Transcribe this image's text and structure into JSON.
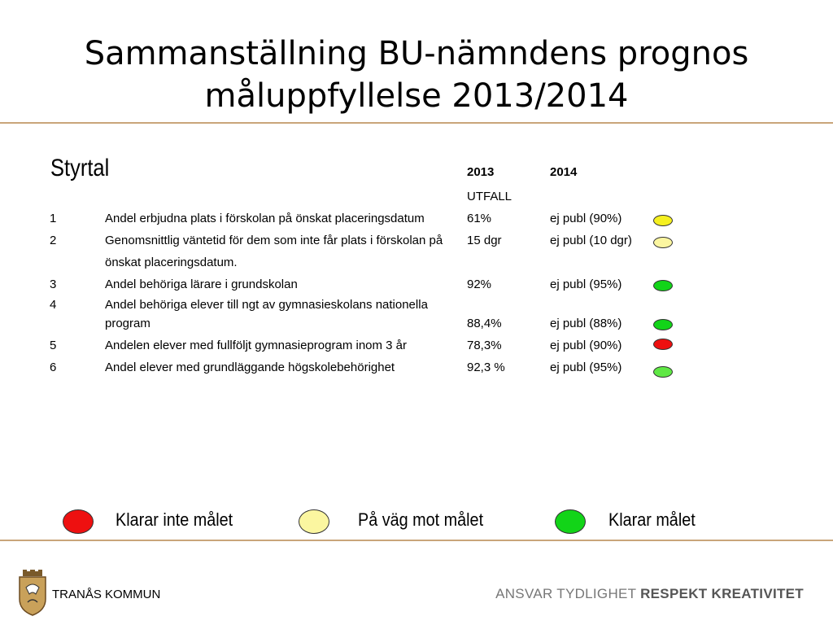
{
  "title": {
    "line1": "Sammanställning BU-nämndens prognos",
    "line2": "måluppfyllelse 2013/2014"
  },
  "table": {
    "heading": "Styrtal",
    "col_2013": "2013",
    "col_2013_sub": "UTFALL",
    "col_2014": "2014",
    "rows": [
      {
        "num": "1",
        "text": [
          "Andel erbjudna plats i förskolan på önskat placeringsdatum"
        ],
        "v2013": "61%",
        "v2014": "ej publ (90%)",
        "status_color": "#f5f020"
      },
      {
        "num": "2",
        "text": [
          "Genomsnittlig väntetid för dem som inte får plats i förskolan på",
          "önskat placeringsdatum."
        ],
        "v2013": "15 dgr",
        "v2014": "ej publ (10 dgr)",
        "status_color": "#fbf6a0"
      },
      {
        "num": "3",
        "text": [
          "Andel behöriga lärare i grundskolan"
        ],
        "v2013": "92%",
        "v2014": "ej publ (95%)",
        "status_color": "#12d418"
      },
      {
        "num": "4",
        "text": [
          "Andel behöriga elever till ngt av gymnasieskolans nationella",
          "program"
        ],
        "v2013": "88,4%",
        "v2014": "ej publ (88%)",
        "status_color": "#12d418"
      },
      {
        "num": "5",
        "text": [
          "Andelen elever med fullföljt gymnasieprogram inom 3 år"
        ],
        "v2013": "78,3%",
        "v2014": "ej publ (90%)",
        "status_color": "#ee1010"
      },
      {
        "num": "6",
        "text": [
          "Andel elever med grundläggande högskolebehörighet"
        ],
        "v2013": "92,3 %",
        "v2014": "ej publ (95%)",
        "status_color": "#5fe844"
      }
    ]
  },
  "legend": [
    {
      "label": "Klarar inte målet",
      "color": "#ee1010"
    },
    {
      "label": "På väg mot målet",
      "color": "#fbf6a0"
    },
    {
      "label": "Klarar målet",
      "color": "#12d418"
    }
  ],
  "footer": {
    "org": "TRANÅS KOMMUN",
    "slogan_light": "ANSVAR TYDLIGHET",
    "slogan_bold": "RESPEKT KREATIVITET"
  }
}
